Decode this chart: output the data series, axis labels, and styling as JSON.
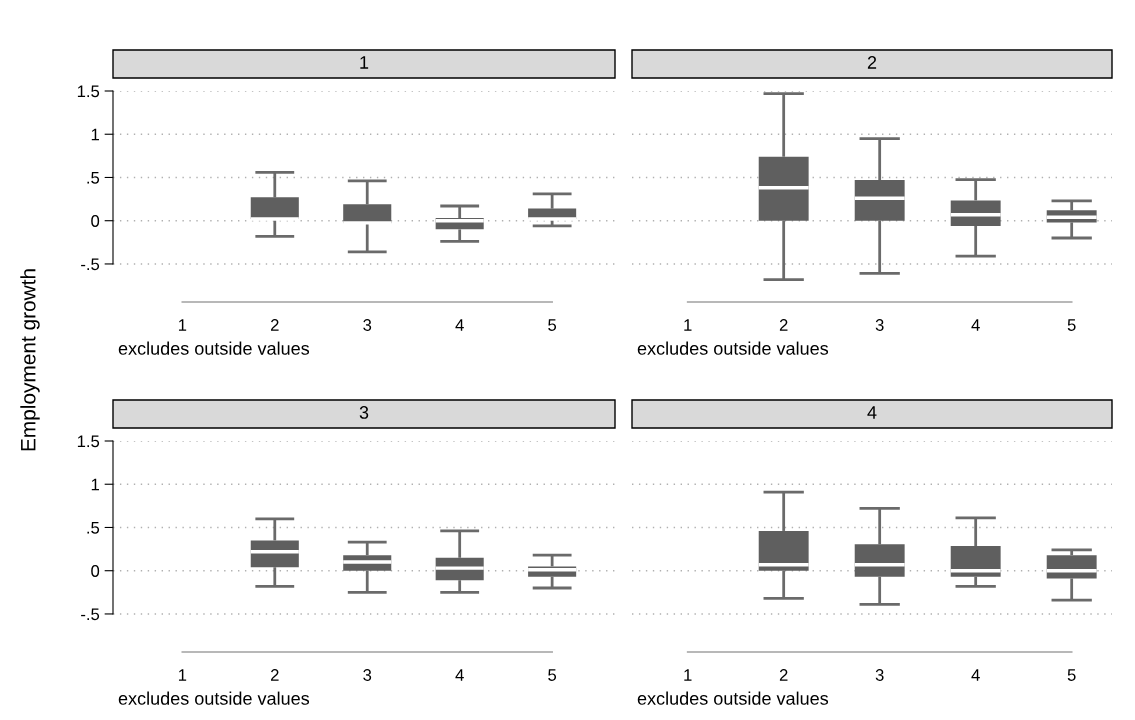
{
  "chart_data": [
    {
      "type": "box",
      "title": "1",
      "ylabel": "Employment growth",
      "categories": [
        "1",
        "2",
        "3",
        "4",
        "5"
      ],
      "color": "#5f5f5f",
      "grid": "y",
      "ylim": [
        -0.94,
        1.5
      ],
      "yticks": [
        {
          "value": -0.5,
          "label": "-.5"
        },
        0,
        {
          "value": 0.5,
          "label": ".5"
        },
        1,
        1.5
      ],
      "annotations": [
        "excludes outside values"
      ],
      "boxes": [
        null,
        {
          "low": -0.18,
          "q1": 0.02,
          "median": 0.02,
          "q3": 0.27,
          "high": 0.56
        },
        {
          "low": -0.36,
          "q1": -0.03,
          "median": -0.025,
          "q3": 0.19,
          "high": 0.46
        },
        {
          "low": -0.24,
          "q1": -0.1,
          "median": 0.0,
          "q3": 0.03,
          "high": 0.17
        },
        {
          "low": -0.06,
          "q1": 0.02,
          "median": 0.02,
          "q3": 0.14,
          "high": 0.31
        }
      ]
    },
    {
      "type": "box",
      "title": "2",
      "categories": [
        "1",
        "2",
        "3",
        "4",
        "5"
      ],
      "color": "#5f5f5f",
      "grid": "y",
      "tick_labels": "x",
      "ylim": [
        -0.94,
        1.5
      ],
      "yticks": [
        {
          "value": -0.5,
          "label": null
        },
        {
          "value": 0,
          "label": null
        },
        {
          "value": 0.5,
          "label": null
        },
        {
          "value": 1,
          "label": null
        },
        {
          "value": 1.5,
          "label": null
        }
      ],
      "annotations": [
        "excludes outside values"
      ],
      "boxes": [
        null,
        {
          "low": -0.68,
          "q1": 0.0,
          "median": 0.38,
          "q3": 0.74,
          "high": 1.47
        },
        {
          "low": -0.61,
          "q1": 0.0,
          "median": 0.26,
          "q3": 0.47,
          "high": 0.95
        },
        {
          "low": -0.41,
          "q1": -0.06,
          "median": 0.07,
          "q3": 0.235,
          "high": 0.475
        },
        {
          "low": -0.2,
          "q1": -0.02,
          "median": 0.04,
          "q3": 0.12,
          "high": 0.23
        }
      ]
    },
    {
      "type": "box",
      "title": "3",
      "categories": [
        "1",
        "2",
        "3",
        "4",
        "5"
      ],
      "color": "#5f5f5f",
      "grid": "y",
      "ylim": [
        -0.94,
        1.5
      ],
      "yticks": [
        {
          "value": -0.5,
          "label": "-.5"
        },
        0,
        {
          "value": 0.5,
          "label": ".5"
        },
        1,
        1.5
      ],
      "annotations": [
        "excludes outside values"
      ],
      "boxes": [
        null,
        {
          "low": -0.18,
          "q1": 0.04,
          "median": 0.22,
          "q3": 0.35,
          "high": 0.6
        },
        {
          "low": -0.25,
          "q1": 0.0,
          "median": 0.1,
          "q3": 0.18,
          "high": 0.33
        },
        {
          "low": -0.25,
          "q1": -0.11,
          "median": 0.03,
          "q3": 0.15,
          "high": 0.46
        },
        {
          "low": -0.2,
          "q1": -0.07,
          "median": 0.01,
          "q3": 0.05,
          "high": 0.18
        }
      ]
    },
    {
      "type": "box",
      "title": "4",
      "categories": [
        "1",
        "2",
        "3",
        "4",
        "5"
      ],
      "color": "#5f5f5f",
      "grid": "y",
      "tick_labels": "x",
      "ylim": [
        -0.94,
        1.5
      ],
      "yticks": [
        {
          "value": -0.5,
          "label": null
        },
        {
          "value": 0,
          "label": null
        },
        {
          "value": 0.5,
          "label": null
        },
        {
          "value": 1,
          "label": null
        },
        {
          "value": 1.5,
          "label": null
        }
      ],
      "annotations": [
        "excludes outside values"
      ],
      "boxes": [
        null,
        {
          "low": -0.32,
          "q1": 0.0,
          "median": 0.07,
          "q3": 0.46,
          "high": 0.91
        },
        {
          "low": -0.39,
          "q1": -0.07,
          "median": 0.07,
          "q3": 0.305,
          "high": 0.72
        },
        {
          "low": -0.18,
          "q1": -0.07,
          "median": 0.0,
          "q3": 0.285,
          "high": 0.61
        },
        {
          "low": -0.34,
          "q1": -0.09,
          "median": 0.0,
          "q3": 0.18,
          "high": 0.24
        }
      ]
    }
  ]
}
